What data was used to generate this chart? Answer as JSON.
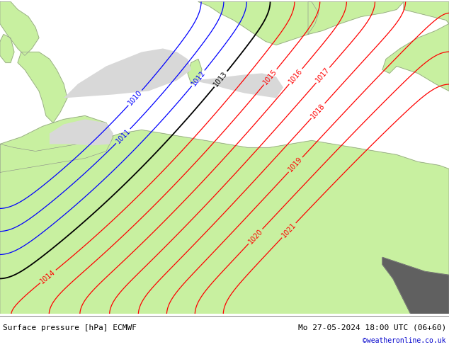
{
  "title_left": "Surface pressure [hPa] ECMWF",
  "title_right": "Mo 27-05-2024 18:00 UTC (06+60)",
  "credit": "©weatheronline.co.uk",
  "land_color": "#c8f0a0",
  "sea_color": "#d8d8d8",
  "border_color": "#888888",
  "label_fontsize": 7,
  "title_fontsize": 8,
  "credit_fontsize": 7,
  "credit_color": "#0000cc",
  "contour_lw": 0.9,
  "black_lw": 1.3
}
